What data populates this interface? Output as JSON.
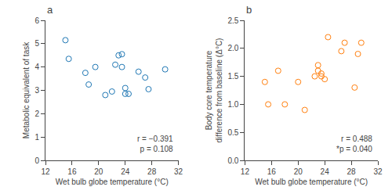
{
  "chart_data": [
    {
      "type": "scatter",
      "title": "a",
      "x": [
        15,
        15.5,
        18,
        18.5,
        19.5,
        21,
        22,
        22.5,
        23,
        23.5,
        23.5,
        24,
        24,
        24.5,
        26,
        27,
        27.5,
        30
      ],
      "values": [
        5.15,
        4.35,
        3.75,
        3.25,
        4.0,
        2.8,
        2.95,
        4.1,
        4.5,
        4.55,
        4.0,
        3.1,
        2.85,
        2.85,
        3.8,
        3.55,
        3.05,
        3.9
      ],
      "xlabel": "Wet bulb globe temperature (°C)",
      "ylabel": "Metabolic equivalent of task",
      "xlim": [
        12,
        32
      ],
      "ylim": [
        0,
        6
      ],
      "xticks": [
        12,
        16,
        20,
        24,
        28,
        32
      ],
      "yticks": [
        0,
        1,
        2,
        3,
        4,
        5,
        6
      ],
      "annotation": "r = −0.391\np = 0.108",
      "marker": "circle-open",
      "grid": false
    },
    {
      "type": "scatter",
      "title": "b",
      "x": [
        15,
        15.5,
        17,
        18,
        20,
        21,
        22.5,
        23,
        23,
        23.5,
        23.5,
        24,
        24.5,
        26.5,
        27,
        28.5,
        29,
        29.5
      ],
      "values": [
        1.4,
        1.0,
        1.6,
        1.0,
        1.4,
        0.9,
        1.5,
        1.6,
        1.7,
        1.55,
        1.5,
        1.45,
        2.2,
        1.95,
        2.1,
        1.3,
        1.9,
        2.1
      ],
      "xlabel": "Wet bulb globe temperature (°C)",
      "ylabel": "Body core temperature\ndifference from baseline (Δ°C)",
      "xlim": [
        12,
        32
      ],
      "ylim": [
        0.0,
        2.5
      ],
      "xticks": [
        12,
        16,
        20,
        24,
        28,
        32
      ],
      "yticks": [
        {
          "value": 0,
          "label": "0.0"
        },
        0.5,
        {
          "value": 1,
          "label": "1.0"
        },
        1.5,
        {
          "value": 2,
          "label": "2.0"
        },
        2.5
      ],
      "annotation": "r = 0.488\n*p = 0.040",
      "marker": "circle-open",
      "grid": false
    }
  ]
}
